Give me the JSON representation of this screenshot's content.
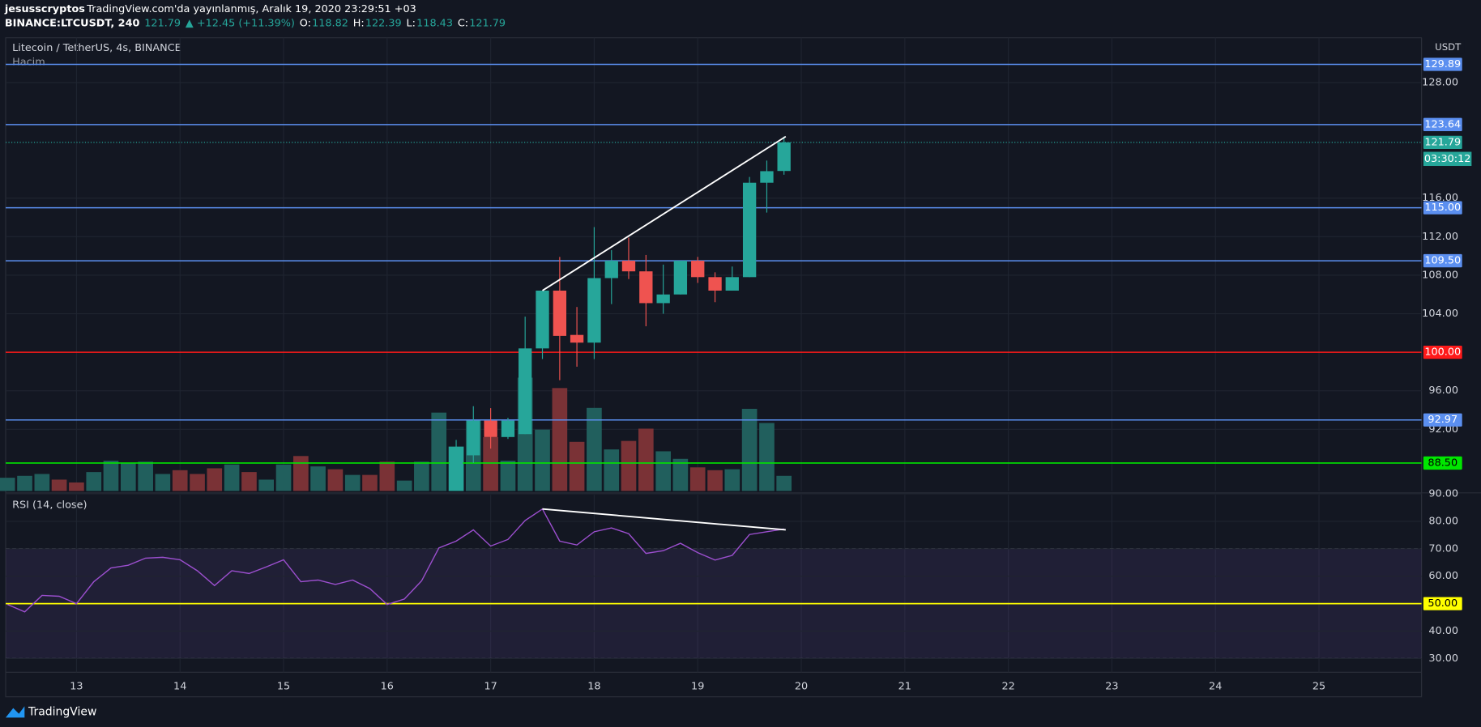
{
  "header": {
    "user": "jesusscryptos",
    "published": "TradingView.com'da yayınlanmış, Aralık 19, 2020 23:29:51 +03",
    "symbol": "BINANCE:LTCUSDT, 240",
    "last": "121.79",
    "change": "▲ +12.45 (+11.39%)",
    "ohlc": [
      {
        "k": "O:",
        "v": "118.82"
      },
      {
        "k": "H:",
        "v": "122.39"
      },
      {
        "k": "L:",
        "v": "118.43"
      },
      {
        "k": "C:",
        "v": "121.79"
      }
    ]
  },
  "footer": {
    "brand": "TradingView"
  },
  "chart_data": [
    {
      "type": "candlestick",
      "legend": "Litecoin / TetherUS, 4s, BINANCE",
      "unit": "USDT",
      "up_color": "#26a69a",
      "down_color": "#ef5350",
      "x": [
        16.667,
        16.833,
        17,
        17.167,
        17.333,
        17.5,
        17.667,
        17.833,
        18,
        18.167,
        18.333,
        18.5,
        18.667,
        18.833,
        19,
        19.167,
        19.333,
        19.5,
        19.667,
        19.833
      ],
      "open": [
        88.3,
        89.3,
        92.9,
        91.2,
        91.5,
        100.4,
        106.4,
        101.8,
        101.0,
        107.7,
        109.5,
        108.4,
        105.1,
        106.0,
        109.5,
        107.8,
        106.4,
        107.8,
        117.6,
        118.82
      ],
      "high": [
        90.9,
        94.4,
        94.2,
        93.2,
        103.7,
        106.4,
        109.9,
        104.7,
        113.0,
        110.6,
        111.9,
        110.1,
        109.1,
        109.5,
        109.9,
        108.3,
        108.9,
        118.2,
        119.9,
        122.39
      ],
      "low": [
        88.3,
        88.5,
        90.0,
        91.0,
        91.5,
        99.3,
        97.1,
        98.5,
        99.3,
        105.0,
        107.6,
        102.7,
        104.0,
        106.0,
        107.2,
        105.2,
        106.4,
        107.8,
        114.5,
        118.43
      ],
      "close": [
        89.5,
        92.9,
        91.2,
        92.9,
        100.4,
        106.4,
        101.7,
        101.0,
        107.7,
        109.5,
        108.4,
        105.1,
        106.0,
        109.5,
        107.8,
        106.4,
        107.8,
        117.6,
        118.8,
        121.79
      ],
      "xlim": [
        12.316,
        25.99
      ],
      "xticks": [
        13,
        14,
        15,
        16,
        17,
        18,
        19,
        20,
        21,
        22,
        23,
        24,
        25
      ],
      "ylim": [
        85.6,
        132.65
      ],
      "yticks": [
        {
          "value": 92,
          "label": "92.00"
        },
        {
          "value": 96,
          "label": "96.00"
        },
        {
          "value": 104,
          "label": "104.00"
        },
        {
          "value": 108,
          "label": "108.00"
        },
        {
          "value": 112,
          "label": "112.00"
        },
        {
          "value": 116,
          "label": "116.00"
        },
        {
          "value": 128,
          "label": "128.00"
        }
      ],
      "grid": true,
      "hlines": [
        {
          "value": 129.89,
          "label": "129.89",
          "color": "#5b8ff0",
          "text_color": "#ffffff"
        },
        {
          "value": 123.64,
          "label": "123.64",
          "color": "#5b8ff0",
          "text_color": "#ffffff"
        },
        {
          "value": 115.0,
          "label": "115.00",
          "color": "#5b8ff0",
          "text_color": "#ffffff"
        },
        {
          "value": 109.5,
          "label": "109.50",
          "color": "#5b8ff0",
          "text_color": "#ffffff"
        },
        {
          "value": 100.0,
          "label": "100.00",
          "color": "#ff1a1a",
          "text_color": "#ffffff"
        },
        {
          "value": 92.97,
          "label": "92.97",
          "color": "#5b8ff0",
          "text_color": "#ffffff"
        },
        {
          "value": 88.5,
          "label": "88.50",
          "color": "#00e600",
          "text_color": "#000000"
        }
      ],
      "last": {
        "value": 121.79,
        "label": "121.79",
        "countdown": "03:30:12"
      },
      "trendline": {
        "x": [
          17.5,
          19.85
        ],
        "y": [
          106.4,
          122.4
        ],
        "color": "#ffffff"
      }
    },
    {
      "type": "bar",
      "name": "Hacim",
      "x": [
        12.333,
        12.5,
        12.667,
        12.833,
        13,
        13.167,
        13.333,
        13.5,
        13.667,
        13.833,
        14,
        14.167,
        14.333,
        14.5,
        14.667,
        14.833,
        15,
        15.167,
        15.333,
        15.5,
        15.667,
        15.833,
        16,
        16.167,
        16.333,
        16.5,
        16.667,
        16.833,
        17,
        17.167,
        17.333,
        17.5,
        17.667,
        17.833,
        18,
        18.167,
        18.333,
        18.5,
        18.667,
        18.833,
        19,
        19.167,
        19.333,
        19.5,
        19.667,
        19.833
      ],
      "values": [
        14,
        16,
        18,
        12,
        9,
        20,
        32,
        30,
        31,
        18,
        22,
        18,
        24,
        28,
        20,
        12,
        28,
        37,
        26,
        23,
        17,
        17,
        31,
        11,
        31,
        83,
        47,
        75,
        57,
        32,
        120,
        65,
        109,
        52,
        88,
        44,
        53,
        66,
        42,
        34,
        25,
        22,
        23,
        87,
        72,
        16
      ],
      "colors": [
        "#215f5d",
        "#215f5d",
        "#215f5d",
        "#7a3236",
        "#7a3236",
        "#215f5d",
        "#215f5d",
        "#215f5d",
        "#215f5d",
        "#215f5d",
        "#7a3236",
        "#7a3236",
        "#7a3236",
        "#215f5d",
        "#7a3236",
        "#215f5d",
        "#215f5d",
        "#7a3236",
        "#215f5d",
        "#7a3236",
        "#215f5d",
        "#7a3236",
        "#7a3236",
        "#215f5d",
        "#215f5d",
        "#215f5d",
        "#26a69a",
        "#215f5d",
        "#7a3236",
        "#215f5d",
        "#215f5d",
        "#215f5d",
        "#7a3236",
        "#7a3236",
        "#215f5d",
        "#215f5d",
        "#7a3236",
        "#7a3236",
        "#215f5d",
        "#215f5d",
        "#7a3236",
        "#7a3236",
        "#215f5d",
        "#215f5d",
        "#215f5d",
        "#215f5d"
      ]
    },
    {
      "type": "line",
      "title": "RSI (14, close)",
      "color": "#9c4fcf",
      "x": [
        12.333,
        12.5,
        12.667,
        12.833,
        13,
        13.167,
        13.333,
        13.5,
        13.667,
        13.833,
        14,
        14.167,
        14.333,
        14.5,
        14.667,
        14.833,
        15,
        15.167,
        15.333,
        15.5,
        15.667,
        15.833,
        16,
        16.167,
        16.333,
        16.5,
        16.667,
        16.833,
        17,
        17.167,
        17.333,
        17.5,
        17.667,
        17.833,
        18,
        18.167,
        18.333,
        18.5,
        18.667,
        18.833,
        19,
        19.167,
        19.333,
        19.5,
        19.667,
        19.833
      ],
      "values": [
        49.7,
        47,
        53,
        52.7,
        50,
        58,
        63,
        64,
        66.6,
        66.9,
        66,
        62,
        56.6,
        62,
        61,
        63.4,
        66,
        58,
        58.6,
        57,
        58.6,
        55.5,
        49.7,
        51.7,
        58.3,
        70.3,
        72.8,
        76.9,
        71,
        73.4,
        80.3,
        84.5,
        72.8,
        71.4,
        76.2,
        77.6,
        75.5,
        68.3,
        69.3,
        72,
        68.6,
        65.9,
        67.6,
        75.2,
        76.2,
        77.2
      ],
      "ylim": [
        25,
        89.7
      ],
      "yticks": [
        {
          "value": 30,
          "label": "30.00"
        },
        {
          "value": 40,
          "label": "40.00"
        },
        {
          "value": 60,
          "label": "60.00"
        },
        {
          "value": 70,
          "label": "70.00"
        },
        {
          "value": 80,
          "label": "80.00"
        },
        {
          "value": 90,
          "label": "90.00"
        }
      ],
      "band": [
        70,
        30
      ],
      "hline": {
        "value": 50,
        "label": "50.00",
        "color": "#ffff00"
      },
      "trendline": {
        "x": [
          17.5,
          19.85
        ],
        "y": [
          84.5,
          76.9
        ],
        "color": "#ffffff"
      }
    }
  ]
}
